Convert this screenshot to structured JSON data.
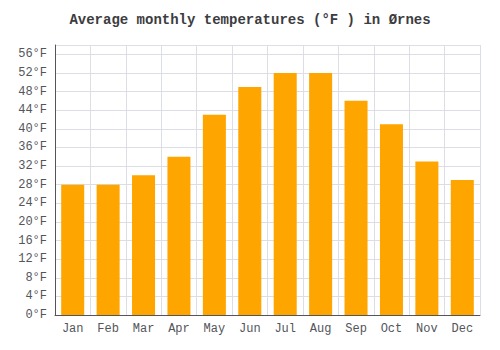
{
  "chart_data": {
    "type": "bar",
    "title": "Average monthly temperatures (°F ) in Ørnes",
    "categories": [
      "Jan",
      "Feb",
      "Mar",
      "Apr",
      "May",
      "Jun",
      "Jul",
      "Aug",
      "Sep",
      "Oct",
      "Nov",
      "Dec"
    ],
    "values": [
      28,
      28,
      30,
      34,
      43,
      49,
      52,
      52,
      46,
      41,
      33,
      29
    ],
    "color": "#FFA500",
    "ylim": [
      0,
      58
    ],
    "yticks": [
      {
        "value": 0,
        "label": "0°F"
      },
      {
        "value": 4,
        "label": "4°F"
      },
      {
        "value": 8,
        "label": "8°F"
      },
      {
        "value": 12,
        "label": "12°F"
      },
      {
        "value": 16,
        "label": "16°F"
      },
      {
        "value": 20,
        "label": "20°F"
      },
      {
        "value": 24,
        "label": "24°F"
      },
      {
        "value": 28,
        "label": "28°F"
      },
      {
        "value": 32,
        "label": "32°F"
      },
      {
        "value": 36,
        "label": "36°F"
      },
      {
        "value": 40,
        "label": "40°F"
      },
      {
        "value": 44,
        "label": "44°F"
      },
      {
        "value": 48,
        "label": "48°F"
      },
      {
        "value": 52,
        "label": "52°F"
      },
      {
        "value": 56,
        "label": "56°F"
      }
    ],
    "grid": true
  }
}
